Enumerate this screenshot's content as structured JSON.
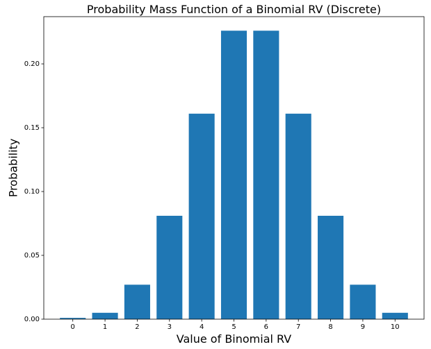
{
  "chart_data": {
    "type": "bar",
    "title": "Probability Mass Function of a Binomial RV (Discrete)",
    "xlabel": "Value of Binomial RV",
    "ylabel": "Probability",
    "categories": [
      "0",
      "1",
      "2",
      "3",
      "4",
      "5",
      "6",
      "7",
      "8",
      "9",
      "10"
    ],
    "values": [
      0.001,
      0.005,
      0.027,
      0.081,
      0.161,
      0.226,
      0.226,
      0.161,
      0.081,
      0.027,
      0.005
    ],
    "yticks": [
      "0.00",
      "0.05",
      "0.10",
      "0.15",
      "0.20"
    ],
    "ylim": [
      0,
      0.237
    ],
    "grid": false,
    "bar_color": "#1f77b4"
  }
}
